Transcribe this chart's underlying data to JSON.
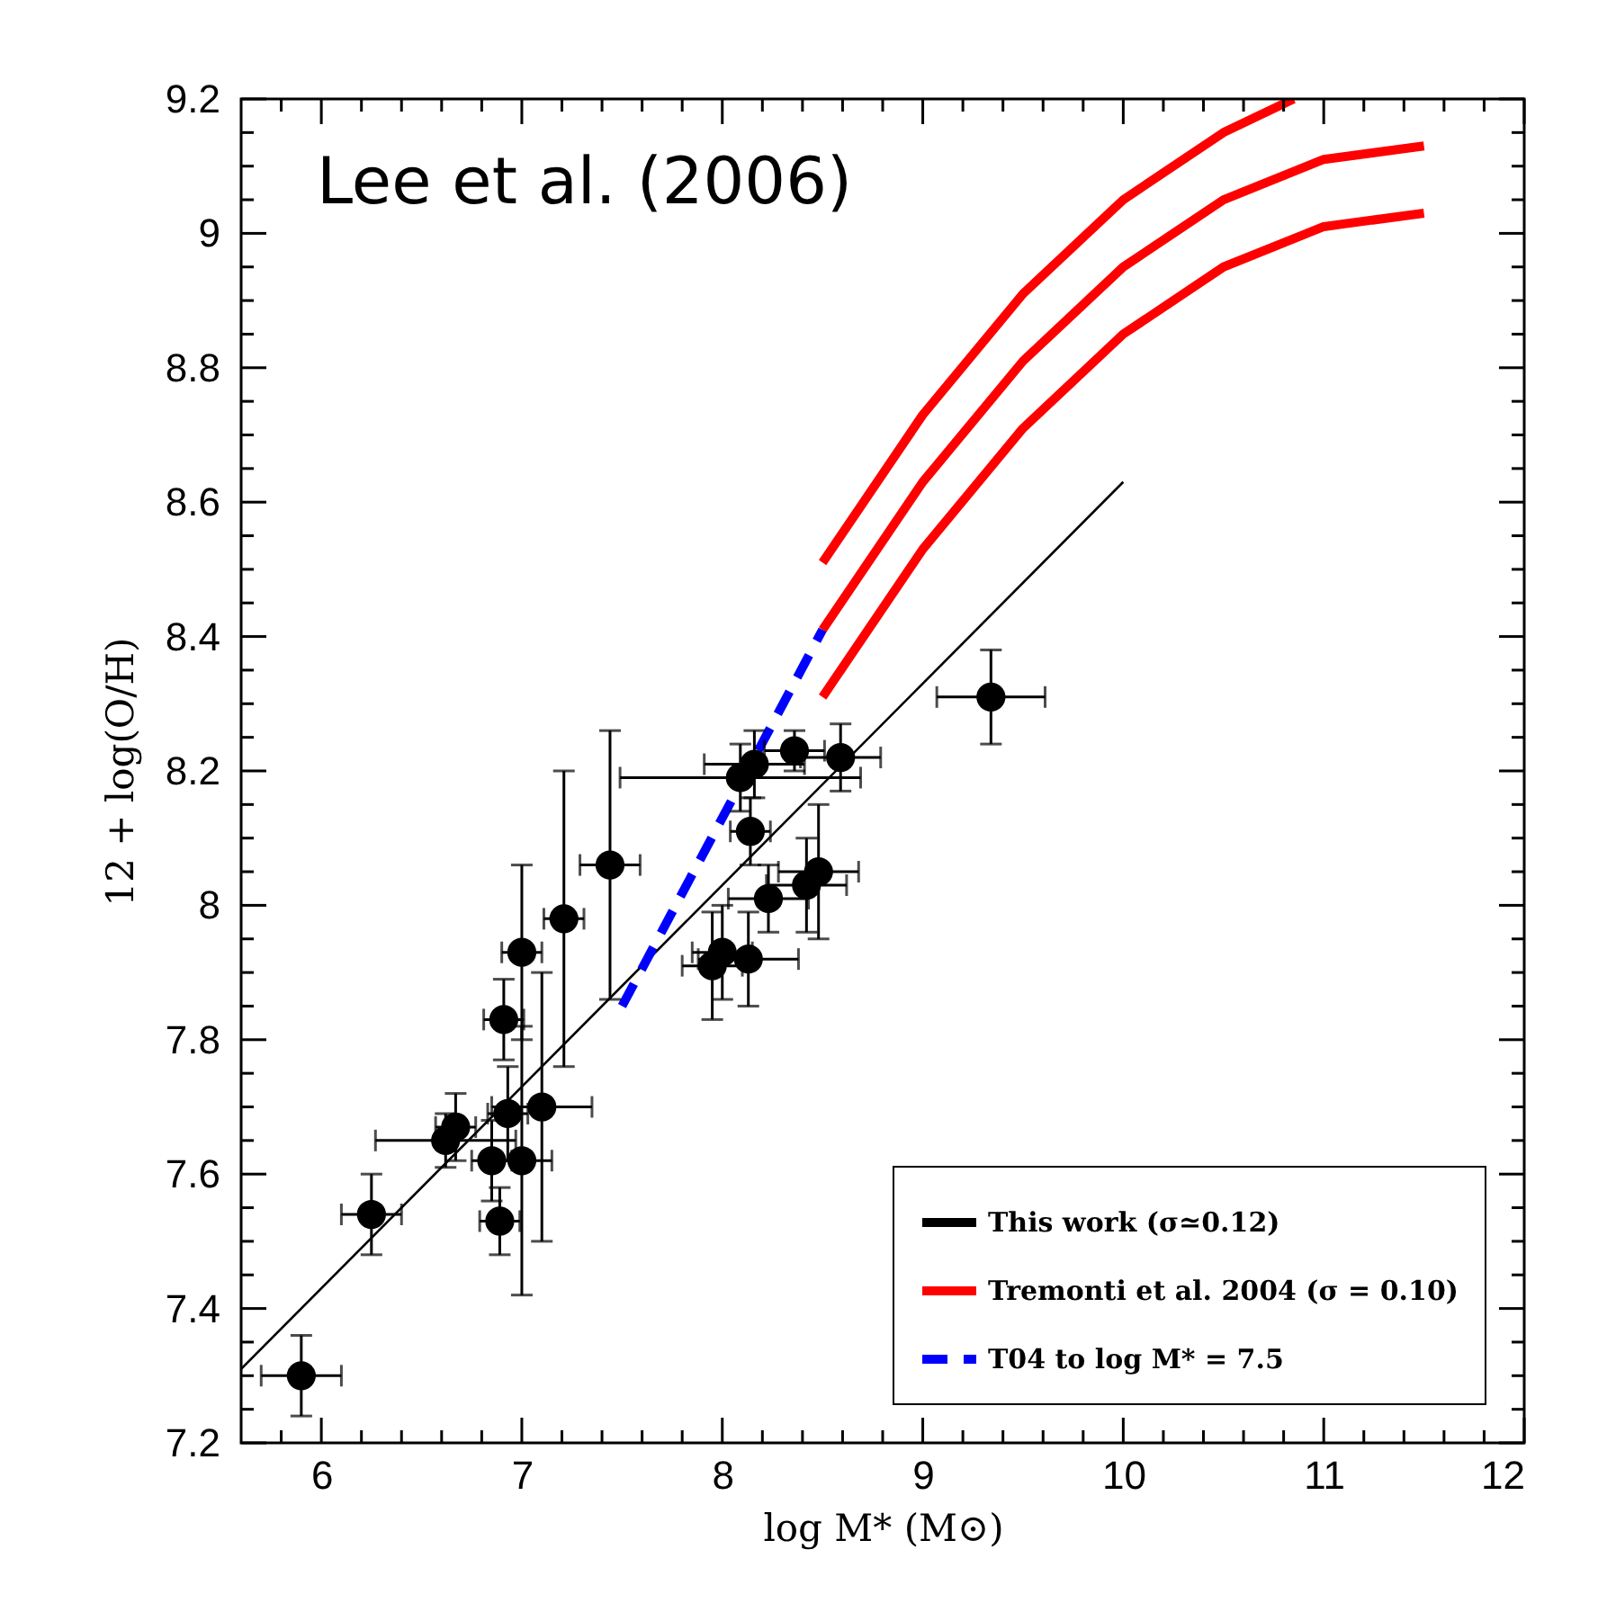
{
  "chart_data": {
    "type": "scatter",
    "xlabel": "log M* (M⊙)",
    "ylabel": "12 + log(O/H)",
    "annotations": [
      "Lee et al. (2006)"
    ],
    "xlim": [
      5.6,
      12
    ],
    "ylim": [
      7.2,
      9.2
    ],
    "xticks": [
      6,
      {
        "value": 6.2,
        "label": null
      },
      {
        "value": 6.4,
        "label": null
      },
      {
        "value": 6.6,
        "label": null
      },
      {
        "value": 6.8,
        "label": null
      },
      7,
      {
        "value": 7.2,
        "label": null
      },
      {
        "value": 7.4,
        "label": null
      },
      {
        "value": 7.6,
        "label": null
      },
      {
        "value": 7.8,
        "label": null
      },
      8,
      {
        "value": 8.2,
        "label": null
      },
      {
        "value": 8.4,
        "label": null
      },
      {
        "value": 8.6,
        "label": null
      },
      {
        "value": 8.8,
        "label": null
      },
      9,
      {
        "value": 9.2,
        "label": null
      },
      {
        "value": 9.4,
        "label": null
      },
      {
        "value": 9.6,
        "label": null
      },
      {
        "value": 9.8,
        "label": null
      },
      10,
      {
        "value": 10.2,
        "label": null
      },
      {
        "value": 10.4,
        "label": null
      },
      {
        "value": 10.6,
        "label": null
      },
      {
        "value": 10.8,
        "label": null
      },
      11,
      {
        "value": 11.2,
        "label": null
      },
      {
        "value": 11.4,
        "label": null
      },
      {
        "value": 11.6,
        "label": null
      },
      {
        "value": 11.8,
        "label": null
      },
      12,
      {
        "value": 5.8,
        "label": null
      }
    ],
    "yticks": [
      7.2,
      {
        "value": 7.25,
        "label": null
      },
      {
        "value": 7.3,
        "label": null
      },
      {
        "value": 7.35,
        "label": null
      },
      7.4,
      {
        "value": 7.45,
        "label": null
      },
      {
        "value": 7.5,
        "label": null
      },
      {
        "value": 7.55,
        "label": null
      },
      7.6,
      {
        "value": 7.65,
        "label": null
      },
      {
        "value": 7.7,
        "label": null
      },
      {
        "value": 7.75,
        "label": null
      },
      7.8,
      {
        "value": 7.85,
        "label": null
      },
      {
        "value": 7.9,
        "label": null
      },
      {
        "value": 7.95,
        "label": null
      },
      8,
      {
        "value": 8.05,
        "label": null
      },
      {
        "value": 8.1,
        "label": null
      },
      {
        "value": 8.15,
        "label": null
      },
      8.2,
      {
        "value": 8.25,
        "label": null
      },
      {
        "value": 8.3,
        "label": null
      },
      {
        "value": 8.35,
        "label": null
      },
      8.4,
      {
        "value": 8.45,
        "label": null
      },
      {
        "value": 8.5,
        "label": null
      },
      {
        "value": 8.55,
        "label": null
      },
      8.6,
      {
        "value": 8.65,
        "label": null
      },
      {
        "value": 8.7,
        "label": null
      },
      {
        "value": 8.75,
        "label": null
      },
      8.8,
      {
        "value": 8.85,
        "label": null
      },
      {
        "value": 8.9,
        "label": null
      },
      {
        "value": 8.95,
        "label": null
      },
      9,
      {
        "value": 9.05,
        "label": null
      },
      {
        "value": 9.1,
        "label": null
      },
      {
        "value": 9.15,
        "label": null
      },
      9.2
    ],
    "grid": false,
    "legend": "bottom right",
    "series": [
      {
        "type": "line",
        "color": "#000000",
        "line_style": "solid",
        "marker": "none",
        "x": [
          5.6,
          10
        ],
        "values": [
          7.31,
          8.63
        ]
      },
      {
        "type": "line",
        "name": "Tremonti et al. 2004 (σ = 0.10)",
        "color": "#ff0000",
        "line_style": "solid",
        "marker": "none",
        "x": [
          8.5,
          9,
          9.5,
          10,
          10.5,
          11,
          11.5
        ],
        "values": [
          8.41,
          8.63,
          8.81,
          8.95,
          9.05,
          9.11,
          9.13
        ]
      },
      {
        "type": "line",
        "color": "#ff0000",
        "line_style": "solid",
        "marker": "none",
        "x": [
          8.5,
          9,
          9.5,
          10,
          10.5,
          10.85
        ],
        "values": [
          8.51,
          8.73,
          8.91,
          9.05,
          9.15,
          9.2
        ]
      },
      {
        "type": "line",
        "color": "#ff0000",
        "line_style": "solid",
        "marker": "none",
        "x": [
          8.5,
          9,
          9.5,
          10,
          10.5,
          11,
          11.5
        ],
        "values": [
          8.31,
          8.53,
          8.71,
          8.85,
          8.95,
          9.01,
          9.03
        ]
      },
      {
        "type": "line",
        "name": "T04 to log M* = 7.5",
        "color": "#0000ff",
        "line_style": "dashed",
        "marker": "none",
        "x": [
          7.5,
          8.5
        ],
        "values": [
          7.85,
          8.41
        ]
      },
      {
        "name": "This work (σ≃0.12)",
        "color": "#000000",
        "marker": "circle",
        "x": [
          5.9,
          6.25,
          6.62,
          6.67,
          6.85,
          6.89,
          6.93,
          7.0,
          7.1,
          6.91,
          7.0,
          7.21,
          7.44,
          7.95,
          8.0,
          8.13,
          8.23,
          8.42,
          8.48,
          8.14,
          8.09,
          8.16,
          8.36,
          8.59,
          9.34
        ],
        "values": [
          7.3,
          7.54,
          7.65,
          7.67,
          7.62,
          7.53,
          7.69,
          7.62,
          7.7,
          7.83,
          7.93,
          7.98,
          8.06,
          7.91,
          7.93,
          7.92,
          8.01,
          8.03,
          8.05,
          8.11,
          8.19,
          8.21,
          8.23,
          8.22,
          8.31
        ],
        "errors": [
          0.06,
          0.06,
          0.04,
          0.05,
          0.06,
          0.05,
          0.07,
          0.2,
          0.2,
          0.06,
          0.13,
          0.22,
          0.2,
          0.08,
          0.07,
          0.07,
          0.05,
          0.07,
          0.1,
          0.05,
          0.05,
          0.05,
          0.03,
          0.05,
          0.07
        ],
        "xerrors": [
          0.2,
          0.15,
          0.35,
          0.1,
          0.1,
          0.1,
          0.1,
          0.15,
          0.25,
          0.1,
          0.1,
          0.1,
          0.15,
          0.15,
          0.15,
          0.25,
          0.2,
          0.2,
          0.2,
          0.1,
          0.6,
          0.25,
          0.15,
          0.2,
          0.27
        ]
      }
    ]
  }
}
